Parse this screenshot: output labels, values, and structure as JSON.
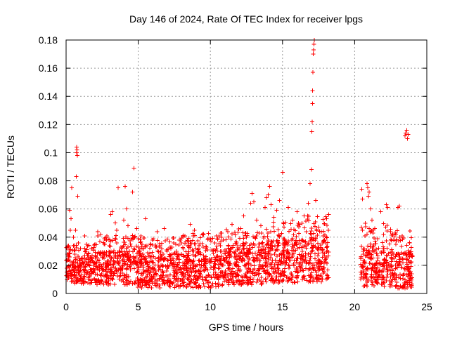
{
  "chart_data": {
    "type": "scatter",
    "title": "Day 146 of 2024, Rate Of TEC Index for receiver lpgs",
    "xlabel": "GPS time / hours",
    "ylabel": "ROTI / TECUs",
    "xlim": [
      0,
      25
    ],
    "ylim": [
      0,
      0.18
    ],
    "xticks": [
      0,
      5,
      10,
      15,
      20,
      25
    ],
    "xtick_labels": [
      "0",
      "5",
      "10",
      "15",
      "20",
      "25"
    ],
    "yticks": [
      0,
      0.02,
      0.04,
      0.06,
      0.08,
      0.1,
      0.12,
      0.14,
      0.16,
      0.18
    ],
    "ytick_labels": [
      "0",
      "0.02",
      "0.04",
      "0.06",
      "0.08",
      "0.1",
      "0.12",
      "0.14",
      "0.16",
      "0.18"
    ],
    "grid": true,
    "marker": "+",
    "color": "#ff0000",
    "series": [
      {
        "name": "ROTI",
        "points": [
          [
            0.05,
            0.018
          ],
          [
            0.1,
            0.028
          ],
          [
            0.15,
            0.012
          ],
          [
            0.2,
            0.033
          ],
          [
            0.25,
            0.059
          ],
          [
            0.3,
            0.045
          ],
          [
            0.35,
            0.053
          ],
          [
            0.4,
            0.075
          ],
          [
            0.45,
            0.022
          ],
          [
            0.5,
            0.04
          ],
          [
            0.55,
            0.031
          ],
          [
            0.6,
            0.015
          ],
          [
            0.65,
            0.045
          ],
          [
            0.7,
            0.083
          ],
          [
            0.72,
            0.1
          ],
          [
            0.74,
            0.104
          ],
          [
            0.76,
            0.102
          ],
          [
            0.78,
            0.098
          ],
          [
            0.8,
            0.069
          ],
          [
            0.85,
            0.036
          ],
          [
            0.9,
            0.025
          ],
          [
            1.0,
            0.032
          ],
          [
            1.1,
            0.019
          ],
          [
            1.3,
            0.041
          ],
          [
            1.5,
            0.027
          ],
          [
            1.7,
            0.022
          ],
          [
            2.0,
            0.035
          ],
          [
            2.2,
            0.044
          ],
          [
            2.4,
            0.029
          ],
          [
            2.6,
            0.021
          ],
          [
            2.8,
            0.038
          ],
          [
            3.0,
            0.034
          ],
          [
            3.1,
            0.056
          ],
          [
            3.2,
            0.058
          ],
          [
            3.4,
            0.05
          ],
          [
            3.5,
            0.045
          ],
          [
            3.6,
            0.075
          ],
          [
            3.8,
            0.033
          ],
          [
            4.0,
            0.052
          ],
          [
            4.1,
            0.076
          ],
          [
            4.2,
            0.06
          ],
          [
            4.3,
            0.048
          ],
          [
            4.5,
            0.039
          ],
          [
            4.6,
            0.072
          ],
          [
            4.7,
            0.089
          ],
          [
            4.9,
            0.046
          ],
          [
            5.0,
            0.033
          ],
          [
            5.2,
            0.041
          ],
          [
            5.5,
            0.053
          ],
          [
            5.8,
            0.027
          ],
          [
            6.0,
            0.038
          ],
          [
            6.3,
            0.044
          ],
          [
            6.6,
            0.025
          ],
          [
            6.8,
            0.046
          ],
          [
            7.0,
            0.03
          ],
          [
            7.3,
            0.022
          ],
          [
            7.6,
            0.035
          ],
          [
            8.0,
            0.028
          ],
          [
            8.3,
            0.037
          ],
          [
            8.6,
            0.049
          ],
          [
            8.9,
            0.045
          ],
          [
            9.2,
            0.034
          ],
          [
            9.5,
            0.042
          ],
          [
            9.8,
            0.031
          ],
          [
            10.0,
            0.039
          ],
          [
            10.3,
            0.036
          ],
          [
            10.6,
            0.041
          ],
          [
            10.9,
            0.038
          ],
          [
            11.2,
            0.044
          ],
          [
            11.5,
            0.049
          ],
          [
            11.8,
            0.037
          ],
          [
            12.1,
            0.046
          ],
          [
            12.3,
            0.055
          ],
          [
            12.5,
            0.04
          ],
          [
            12.8,
            0.064
          ],
          [
            12.9,
            0.071
          ],
          [
            13.0,
            0.065
          ],
          [
            13.2,
            0.052
          ],
          [
            13.5,
            0.048
          ],
          [
            13.8,
            0.061
          ],
          [
            13.9,
            0.068
          ],
          [
            14.0,
            0.07
          ],
          [
            14.1,
            0.076
          ],
          [
            14.2,
            0.063
          ],
          [
            14.4,
            0.054
          ],
          [
            14.6,
            0.059
          ],
          [
            14.8,
            0.066
          ],
          [
            15.0,
            0.086
          ],
          [
            15.1,
            0.047
          ],
          [
            15.4,
            0.061
          ],
          [
            15.7,
            0.052
          ],
          [
            16.0,
            0.058
          ],
          [
            16.2,
            0.049
          ],
          [
            16.5,
            0.055
          ],
          [
            16.8,
            0.064
          ],
          [
            16.9,
            0.078
          ],
          [
            17.0,
            0.088
          ],
          [
            17.02,
            0.115
          ],
          [
            17.05,
            0.122
          ],
          [
            17.07,
            0.135
          ],
          [
            17.09,
            0.144
          ],
          [
            17.11,
            0.157
          ],
          [
            17.13,
            0.17
          ],
          [
            17.15,
            0.173
          ],
          [
            17.17,
            0.177
          ],
          [
            17.2,
            0.18
          ],
          [
            17.3,
            0.066
          ],
          [
            17.5,
            0.047
          ],
          [
            17.8,
            0.041
          ],
          [
            18.0,
            0.036
          ],
          [
            18.2,
            0.056
          ],
          [
            20.5,
            0.074
          ],
          [
            20.55,
            0.067
          ],
          [
            20.7,
            0.041
          ],
          [
            20.85,
            0.078
          ],
          [
            20.9,
            0.075
          ],
          [
            20.95,
            0.069
          ],
          [
            21.0,
            0.072
          ],
          [
            21.1,
            0.06
          ],
          [
            21.2,
            0.052
          ],
          [
            21.4,
            0.046
          ],
          [
            21.6,
            0.039
          ],
          [
            21.8,
            0.058
          ],
          [
            22.0,
            0.042
          ],
          [
            22.2,
            0.063
          ],
          [
            22.3,
            0.061
          ],
          [
            22.5,
            0.044
          ],
          [
            22.7,
            0.038
          ],
          [
            23.0,
            0.061
          ],
          [
            23.1,
            0.062
          ],
          [
            23.3,
            0.041
          ],
          [
            23.5,
            0.112
          ],
          [
            23.55,
            0.114
          ],
          [
            23.6,
            0.116
          ],
          [
            23.65,
            0.11
          ],
          [
            23.7,
            0.113
          ],
          [
            23.8,
            0.036
          ],
          [
            24.0,
            0.027
          ]
        ]
      }
    ],
    "density_blocks": [
      {
        "x0": 0.0,
        "x1": 2.0,
        "base_min": 0.007,
        "base_max": 0.026,
        "upper": 0.035
      },
      {
        "x0": 2.0,
        "x1": 4.8,
        "base_min": 0.006,
        "base_max": 0.03,
        "upper": 0.042
      },
      {
        "x0": 4.8,
        "x1": 8.0,
        "base_min": 0.004,
        "base_max": 0.029,
        "upper": 0.04
      },
      {
        "x0": 8.0,
        "x1": 11.0,
        "base_min": 0.004,
        "base_max": 0.031,
        "upper": 0.043
      },
      {
        "x0": 11.0,
        "x1": 13.8,
        "base_min": 0.006,
        "base_max": 0.033,
        "upper": 0.046
      },
      {
        "x0": 13.8,
        "x1": 16.5,
        "base_min": 0.007,
        "base_max": 0.038,
        "upper": 0.051
      },
      {
        "x0": 16.5,
        "x1": 18.2,
        "base_min": 0.008,
        "base_max": 0.04,
        "upper": 0.055
      },
      {
        "x0": 20.4,
        "x1": 22.3,
        "base_min": 0.005,
        "base_max": 0.034,
        "upper": 0.05
      },
      {
        "x0": 22.3,
        "x1": 24.0,
        "base_min": 0.003,
        "base_max": 0.03,
        "upper": 0.046
      }
    ]
  }
}
